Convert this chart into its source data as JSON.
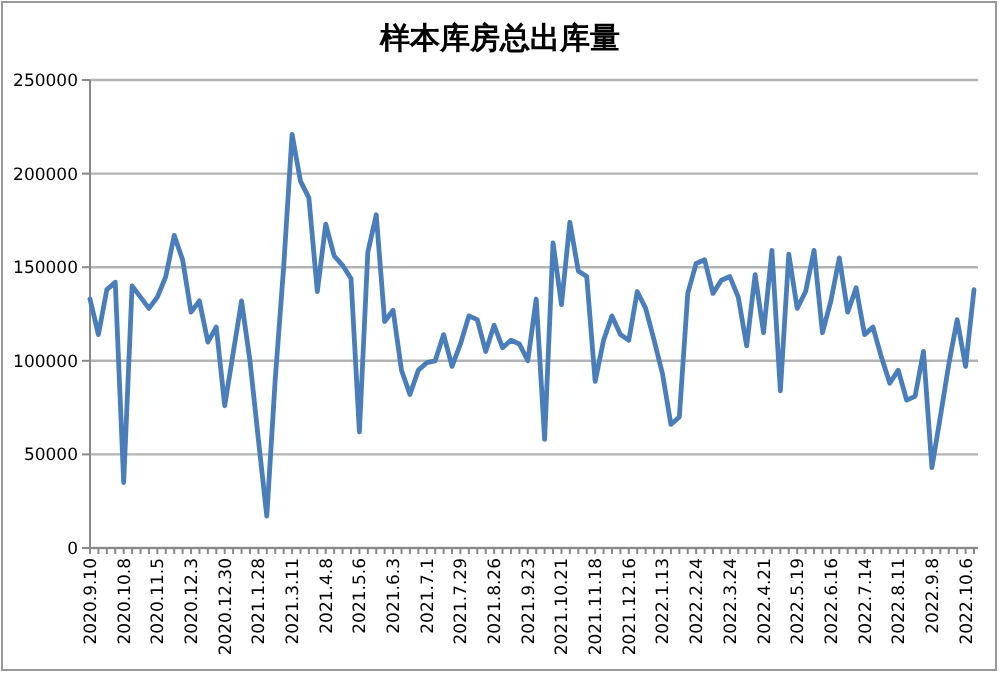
{
  "chart_data": {
    "type": "line",
    "title": "样本库房总出库量",
    "categories": [
      "2020.9.10",
      null,
      null,
      null,
      "2020.10.8",
      null,
      null,
      null,
      "2020.11.5",
      null,
      null,
      null,
      "2020.12.3",
      null,
      null,
      null,
      "2020.12.30",
      null,
      null,
      null,
      "2021.1.28",
      null,
      null,
      null,
      "2021.3.11",
      null,
      null,
      null,
      "2021.4.8",
      null,
      null,
      null,
      "2021.5.6",
      null,
      null,
      null,
      "2021.6.3",
      null,
      null,
      null,
      "2021.7.1",
      null,
      null,
      null,
      "2021.7.29",
      null,
      null,
      null,
      "2021.8.26",
      null,
      null,
      null,
      "2021.9.23",
      null,
      null,
      null,
      "2021.10.21",
      null,
      null,
      null,
      "2021.11.18",
      null,
      null,
      null,
      "2021.12.16",
      null,
      null,
      null,
      "2022.1.13",
      null,
      null,
      null,
      "2022.2.24",
      null,
      null,
      null,
      "2022.3.24",
      null,
      null,
      null,
      "2022.4.21",
      null,
      null,
      null,
      "2022.5.19",
      null,
      null,
      null,
      "2022.6.16",
      null,
      null,
      null,
      "2022.7.14",
      null,
      null,
      null,
      "2022.8.11",
      null,
      null,
      null,
      "2022.9.8",
      null,
      null,
      null,
      "2022.10.6",
      null
    ],
    "series": [
      {
        "color": "#4a7ebb",
        "values": [
          133000,
          114000,
          138000,
          142000,
          35000,
          140000,
          134000,
          128000,
          134000,
          145000,
          167000,
          154000,
          126000,
          132000,
          110000,
          118000,
          76000,
          104000,
          132000,
          100000,
          58000,
          17000,
          90000,
          150000,
          221000,
          196000,
          187000,
          137000,
          173000,
          156000,
          151000,
          144000,
          62000,
          158000,
          178000,
          121000,
          127000,
          95000,
          82000,
          95000,
          99000,
          100000,
          114000,
          97000,
          109000,
          124000,
          122000,
          105000,
          119000,
          107000,
          111000,
          109000,
          100000,
          133000,
          58000,
          163000,
          130000,
          174000,
          148000,
          145000,
          89000,
          111000,
          124000,
          114000,
          111000,
          137000,
          128000,
          111000,
          93000,
          66000,
          70000,
          136000,
          152000,
          154000,
          136000,
          143000,
          145000,
          134000,
          108000,
          146000,
          115000,
          159000,
          84000,
          157000,
          128000,
          137000,
          159000,
          115000,
          132000,
          155000,
          126000,
          139000,
          114000,
          118000,
          102000,
          88000,
          95000,
          79000,
          81000,
          105000,
          43000,
          70000,
          98000,
          122000,
          97000,
          138000
        ]
      }
    ],
    "ylim": [
      0,
      250000
    ],
    "yticks": [
      0,
      50000,
      100000,
      150000,
      200000,
      250000
    ],
    "grid": "y"
  }
}
